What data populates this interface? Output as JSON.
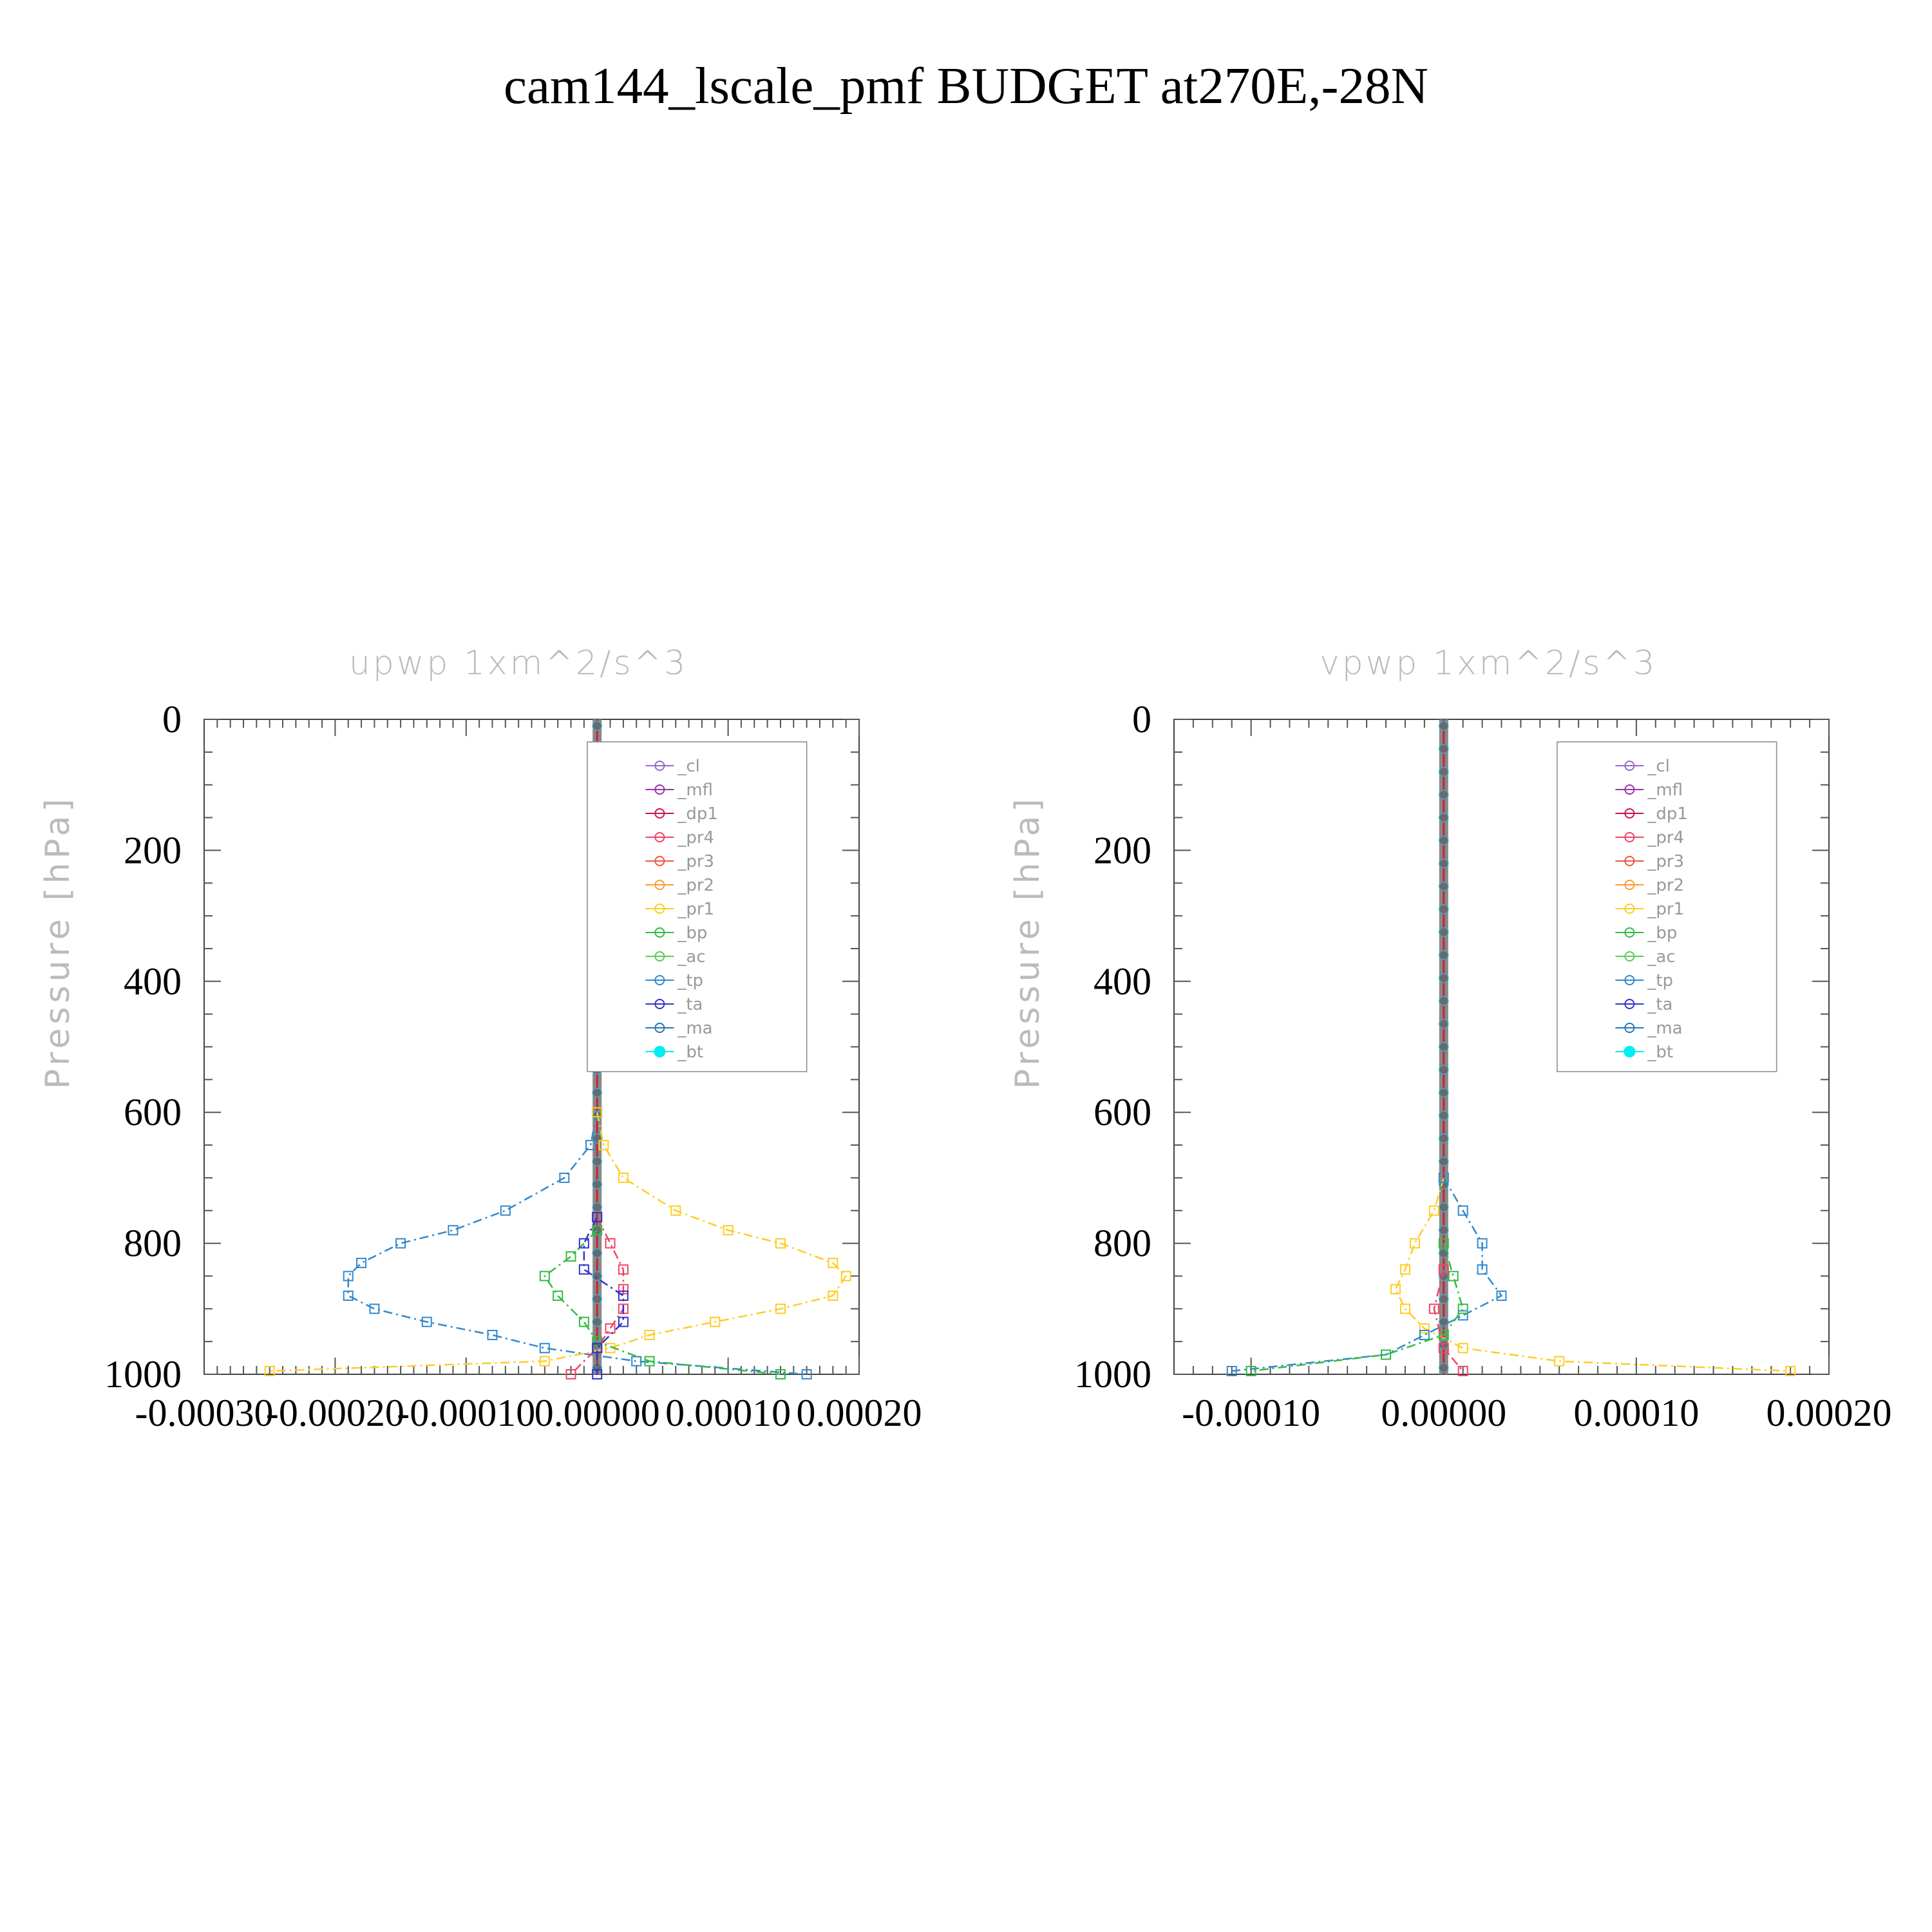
{
  "figure": {
    "title": "cam144_lscale_pmf  BUDGET at270E,-28N"
  },
  "legend_entries": [
    {
      "label": "_cl",
      "color": "#9966cc",
      "marker": "star"
    },
    {
      "label": "_mfl",
      "color": "#9933aa",
      "marker": "triangle-right"
    },
    {
      "label": "_dp1",
      "color": "#cc1155",
      "marker": "triangle-left"
    },
    {
      "label": "_pr4",
      "color": "#ee4466",
      "marker": "diamond"
    },
    {
      "label": "_pr3",
      "color": "#ee5544",
      "marker": "triangle-down"
    },
    {
      "label": "_pr2",
      "color": "#ff9933",
      "marker": "triangle-up"
    },
    {
      "label": "_pr1",
      "color": "#ffcc22",
      "marker": "square"
    },
    {
      "label": "_bp",
      "color": "#33bb44",
      "marker": "x"
    },
    {
      "label": "_ac",
      "color": "#55cc55",
      "marker": "circle"
    },
    {
      "label": "_tp",
      "color": "#3388cc",
      "marker": "asterisk"
    },
    {
      "label": "_ta",
      "color": "#3333cc",
      "marker": "plus"
    },
    {
      "label": "_ma",
      "color": "#2277bb",
      "marker": "dot"
    },
    {
      "label": "_bt",
      "color": "#00eeee",
      "marker": "filled-circle"
    }
  ],
  "chart_data": [
    {
      "type": "line",
      "title": "upwp   1xm^2/s^3",
      "xlabel": "",
      "ylabel": "Pressure [hPa]",
      "xlim": [
        -0.0003,
        0.0002
      ],
      "ylim": [
        1000,
        0
      ],
      "xticks": [
        "-0.00030",
        "-0.00020",
        "-0.00010",
        "0.00000",
        "0.00010",
        "0.00020"
      ],
      "xtick_values": [
        -0.0003,
        -0.0002,
        -0.0001,
        0.0,
        0.0001,
        0.0002
      ],
      "yticks": [
        "0",
        "200",
        "400",
        "600",
        "800",
        "1000"
      ],
      "ytick_values": [
        0,
        200,
        400,
        600,
        800,
        1000
      ],
      "legend_position": "top-right",
      "series": [
        {
          "name": "_tp",
          "pressure": [
            600,
            650,
            700,
            750,
            780,
            800,
            830,
            850,
            880,
            900,
            920,
            940,
            960,
            980,
            1000
          ],
          "values": [
            0.0,
            -5e-06,
            -2.5e-05,
            -7e-05,
            -0.00011,
            -0.00015,
            -0.00018,
            -0.00019,
            -0.00019,
            -0.00017,
            -0.00013,
            -8e-05,
            -4e-05,
            3e-05,
            0.00016
          ]
        },
        {
          "name": "_pr1",
          "pressure": [
            600,
            650,
            700,
            750,
            780,
            800,
            830,
            850,
            880,
            900,
            920,
            940,
            960,
            980,
            995
          ],
          "values": [
            0.0,
            5e-06,
            2e-05,
            6e-05,
            0.0001,
            0.00014,
            0.00018,
            0.00019,
            0.00018,
            0.00014,
            9e-05,
            4e-05,
            1e-05,
            -4e-05,
            -0.00025
          ]
        },
        {
          "name": "_bp",
          "pressure": [
            780,
            820,
            850,
            880,
            920,
            950,
            980,
            1000
          ],
          "values": [
            0.0,
            -2e-05,
            -4e-05,
            -3e-05,
            -1e-05,
            0.0,
            4e-05,
            0.00014
          ]
        },
        {
          "name": "_pr4",
          "pressure": [
            760,
            800,
            840,
            870,
            900,
            930,
            960,
            1000
          ],
          "values": [
            0.0,
            1e-05,
            2e-05,
            2e-05,
            2e-05,
            1e-05,
            0.0,
            -2e-05
          ]
        },
        {
          "name": "_ta",
          "pressure": [
            760,
            800,
            840,
            880,
            920,
            960,
            1000
          ],
          "values": [
            0.0,
            -1e-05,
            -1e-05,
            2e-05,
            2e-05,
            0.0,
            0.0
          ]
        }
      ]
    },
    {
      "type": "line",
      "title": "vpwp   1xm^2/s^3",
      "xlabel": "",
      "ylabel": "Pressure [hPa]",
      "xlim": [
        -0.00014,
        0.0002
      ],
      "ylim": [
        1000,
        0
      ],
      "xticks": [
        "-0.00010",
        "0.00000",
        "0.00010",
        "0.00020"
      ],
      "xtick_values": [
        -0.0001,
        0.0,
        0.0001,
        0.0002
      ],
      "yticks": [
        "0",
        "200",
        "400",
        "600",
        "800",
        "1000"
      ],
      "ytick_values": [
        0,
        200,
        400,
        600,
        800,
        1000
      ],
      "legend_position": "top-right",
      "series": [
        {
          "name": "_pr1",
          "pressure": [
            700,
            750,
            800,
            840,
            870,
            900,
            930,
            960,
            980,
            995
          ],
          "values": [
            0.0,
            -5e-06,
            -1.5e-05,
            -2e-05,
            -2.5e-05,
            -2e-05,
            -1e-05,
            1e-05,
            6e-05,
            0.00018
          ]
        },
        {
          "name": "_tp",
          "pressure": [
            700,
            750,
            800,
            840,
            880,
            910,
            940,
            970,
            995
          ],
          "values": [
            0.0,
            1e-05,
            2e-05,
            2e-05,
            3e-05,
            1e-05,
            -1e-05,
            -3e-05,
            -0.00011
          ]
        },
        {
          "name": "_bp",
          "pressure": [
            800,
            850,
            900,
            940,
            970,
            995
          ],
          "values": [
            0.0,
            5e-06,
            1e-05,
            0.0,
            -3e-05,
            -0.0001
          ]
        },
        {
          "name": "_pr4",
          "pressure": [
            840,
            900,
            960,
            995
          ],
          "values": [
            0.0,
            -5e-06,
            0.0,
            1e-05
          ]
        }
      ]
    }
  ]
}
